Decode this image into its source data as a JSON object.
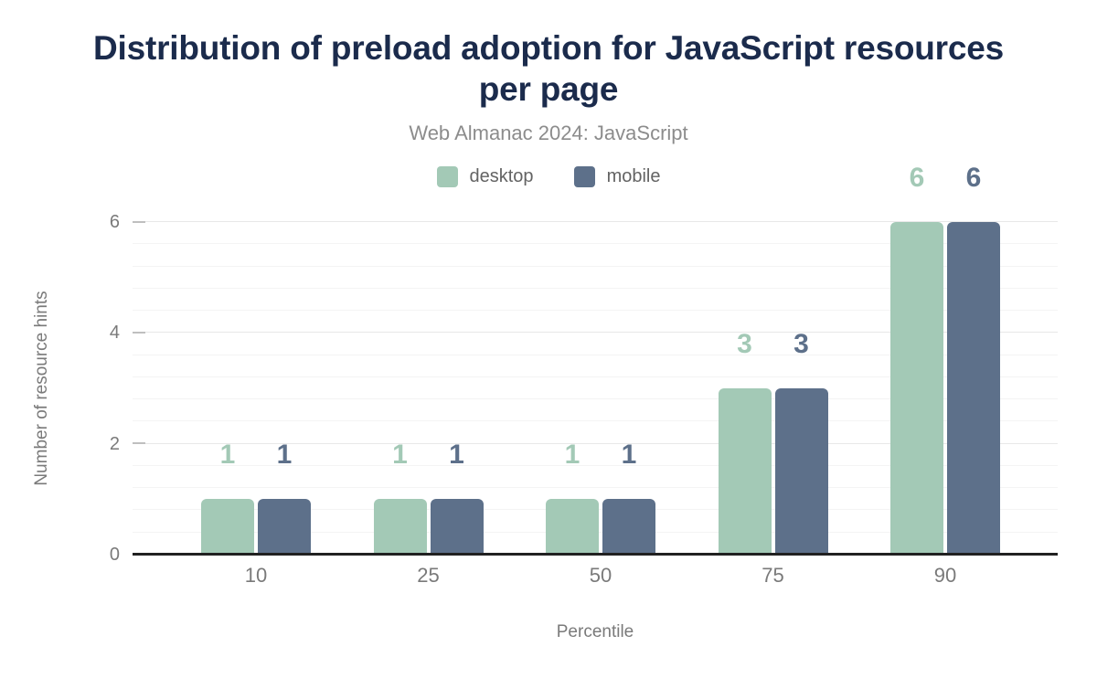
{
  "chart_data": {
    "type": "bar",
    "title": "Distribution of preload adoption for JavaScript resources per page",
    "subtitle": "Web Almanac 2024: JavaScript",
    "categories": [
      "10",
      "25",
      "50",
      "75",
      "90"
    ],
    "series": [
      {
        "name": "desktop",
        "color": "#a3c9b6",
        "values": [
          1,
          1,
          1,
          3,
          6
        ]
      },
      {
        "name": "mobile",
        "color": "#5d708a",
        "values": [
          1,
          1,
          1,
          3,
          6
        ]
      }
    ],
    "xlabel": "Percentile",
    "ylabel": "Number of resource hints",
    "ylim": [
      0,
      6
    ],
    "yticks": [
      0,
      2,
      4,
      6
    ],
    "minor_grid_step": 0.4,
    "grid": true,
    "legend_position": "top",
    "value_labels": true,
    "colors": {
      "title": "#1b2b4c",
      "subtitle": "#8c8c8c",
      "axis_line": "#212121",
      "tick_text": "#7a7a7a",
      "desktop": "#a3c9b6",
      "mobile": "#5d708a"
    }
  }
}
